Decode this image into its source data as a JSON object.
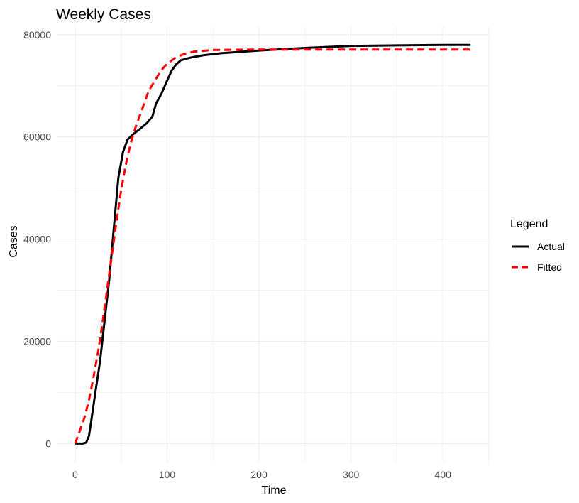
{
  "chart_data": {
    "type": "line",
    "title": "Weekly Cases",
    "xlabel": "Time",
    "ylabel": "Cases",
    "xlim": [
      -20,
      450
    ],
    "ylim": [
      -3700,
      81500
    ],
    "x_ticks": [
      0,
      100,
      200,
      300,
      400
    ],
    "y_ticks": [
      0,
      20000,
      40000,
      60000,
      80000
    ],
    "x_tick_labels": [
      "0",
      "100",
      "200",
      "300",
      "400"
    ],
    "y_tick_labels": [
      "0",
      "20000",
      "40000",
      "60000",
      "80000"
    ],
    "grid": true,
    "legend": {
      "title": "Legend",
      "position": "right"
    },
    "series": [
      {
        "name": "Actual",
        "color": "#000000",
        "dash": "solid",
        "points": [
          [
            0,
            0
          ],
          [
            8,
            0
          ],
          [
            12,
            200
          ],
          [
            15,
            1500
          ],
          [
            18,
            5000
          ],
          [
            22,
            10000
          ],
          [
            27,
            16000
          ],
          [
            32,
            24000
          ],
          [
            37,
            32000
          ],
          [
            42,
            42000
          ],
          [
            47,
            52000
          ],
          [
            52,
            57000
          ],
          [
            57,
            59500
          ],
          [
            63,
            60500
          ],
          [
            70,
            61500
          ],
          [
            78,
            62700
          ],
          [
            84,
            64000
          ],
          [
            88,
            66500
          ],
          [
            94,
            68500
          ],
          [
            100,
            71000
          ],
          [
            105,
            73000
          ],
          [
            110,
            74200
          ],
          [
            115,
            75000
          ],
          [
            125,
            75500
          ],
          [
            140,
            76000
          ],
          [
            160,
            76400
          ],
          [
            200,
            76900
          ],
          [
            250,
            77400
          ],
          [
            300,
            77800
          ],
          [
            350,
            77900
          ],
          [
            400,
            78000
          ],
          [
            430,
            78000
          ]
        ]
      },
      {
        "name": "Fitted",
        "color": "#ff0000",
        "dash": "dashed",
        "points": [
          [
            0,
            0
          ],
          [
            5,
            2500
          ],
          [
            10,
            5000
          ],
          [
            15,
            8500
          ],
          [
            20,
            13000
          ],
          [
            25,
            18000
          ],
          [
            30,
            24000
          ],
          [
            35,
            30500
          ],
          [
            40,
            37000
          ],
          [
            45,
            43500
          ],
          [
            50,
            49500
          ],
          [
            55,
            54500
          ],
          [
            60,
            58500
          ],
          [
            65,
            61500
          ],
          [
            70,
            64000
          ],
          [
            75,
            66500
          ],
          [
            80,
            69000
          ],
          [
            85,
            70500
          ],
          [
            90,
            72000
          ],
          [
            95,
            73300
          ],
          [
            100,
            74300
          ],
          [
            110,
            75600
          ],
          [
            120,
            76300
          ],
          [
            130,
            76700
          ],
          [
            150,
            77000
          ],
          [
            200,
            77100
          ],
          [
            300,
            77100
          ],
          [
            430,
            77100
          ]
        ]
      }
    ]
  }
}
